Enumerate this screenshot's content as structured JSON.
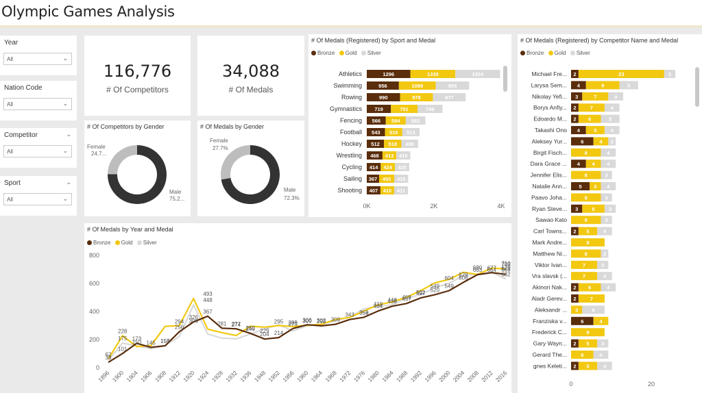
{
  "title": "Olympic Games Analysis",
  "colors": {
    "bronze": "#5a2d0c",
    "gold": "#f2c811",
    "silver": "#d9d9d9",
    "donut_dark": "#333333",
    "donut_light": "#bdbdbd"
  },
  "slicers": [
    {
      "label": "Year",
      "value": "All"
    },
    {
      "label": "Nation Code",
      "value": "All"
    },
    {
      "label": "Competitor",
      "value": "All"
    },
    {
      "label": "Sport",
      "value": "All"
    }
  ],
  "kpis": {
    "competitors": {
      "value": "116,776",
      "label": "# Of Competitors"
    },
    "medals": {
      "value": "34,088",
      "label": "# Of Medals"
    }
  },
  "legend": {
    "bronze": "Bronze",
    "gold": "Gold",
    "silver": "Silver"
  },
  "gender_competitors": {
    "title": "# Of Competitors by Gender",
    "female_label": "Female",
    "female_value": "24.7...",
    "male_label": "Male",
    "male_value": "75.2...",
    "female_pct": 24.7
  },
  "gender_medals": {
    "title": "# Of Medals by Gender",
    "female_label": "Female",
    "female_value": "27.7%",
    "male_label": "Male",
    "male_value": "72.3%",
    "female_pct": 27.7
  },
  "chart_data": [
    {
      "id": "sport",
      "type": "bar",
      "title": "# Of Medals (Registered) by Sport and Medal",
      "categories": [
        "Athletics",
        "Swimming",
        "Rowing",
        "Gymnastics",
        "Fencing",
        "Football",
        "Hockey",
        "Wrestling",
        "Cycling",
        "Sailing",
        "Shooting"
      ],
      "series": [
        {
          "name": "Bronze",
          "values": [
            1296,
            956,
            990,
            719,
            566,
            543,
            512,
            468,
            414,
            367,
            407
          ]
        },
        {
          "name": "Gold",
          "values": [
            1339,
            1099,
            978,
            791,
            594,
            515,
            518,
            413,
            424,
            450,
            410
          ]
        },
        {
          "name": "Silver",
          "values": [
            1334,
            993,
            977,
            746,
            583,
            513,
            498,
            415,
            425,
            415,
            411
          ]
        }
      ],
      "xticks": [
        "0K",
        "2K",
        "4K"
      ],
      "xlim": [
        0,
        4000
      ]
    },
    {
      "id": "competitor",
      "type": "bar",
      "title": "# Of Medals (Registered) by Competitor Name and Medal",
      "categories": [
        "Michael Fre...",
        "Larysa Sem...",
        "Nikolay Yefi...",
        "Borys Anfiy...",
        "Edoardo M...",
        "Takashi Ono",
        "Aleksey Yur...",
        "Birgit Fisch...",
        "Dara Grace ...",
        "Jennifer Elis...",
        "Natalie Ann...",
        "Paavo Joha...",
        "Ryan Steve...",
        "Sawao Kato",
        "Carl Towns...",
        "Mark Andre...",
        "Matthew Ni...",
        "Viktor Ivan...",
        "Vra slavsk (...",
        "Akinori Nak...",
        "Aladr Gerev...",
        "Aleksandr ...",
        "Franziska v...",
        "Frederick C...",
        "Gary Wayn...",
        "Gerard The...",
        "gnes Keleti..."
      ],
      "series": [
        {
          "name": "Bronze",
          "values": [
            2,
            4,
            3,
            2,
            2,
            4,
            6,
            0,
            4,
            0,
            5,
            0,
            3,
            0,
            2,
            0,
            0,
            0,
            0,
            2,
            2,
            0,
            6,
            0,
            2,
            0,
            2
          ]
        },
        {
          "name": "Gold",
          "values": [
            23,
            9,
            7,
            7,
            6,
            5,
            4,
            8,
            4,
            8,
            3,
            8,
            6,
            8,
            5,
            9,
            8,
            7,
            7,
            6,
            7,
            3,
            4,
            9,
            5,
            6,
            5
          ]
        },
        {
          "name": "Silver",
          "values": [
            3,
            5,
            4,
            4,
            5,
            4,
            2,
            4,
            4,
            3,
            4,
            3,
            3,
            3,
            4,
            0,
            2,
            3,
            4,
            4,
            0,
            6,
            0,
            0,
            3,
            4,
            4
          ]
        }
      ],
      "xticks": [
        "0",
        "20"
      ],
      "xlim": [
        0,
        30
      ]
    },
    {
      "id": "year",
      "type": "line",
      "title": "# Of Medals by Year and Medal",
      "x": [
        "1896",
        "1900",
        "1904",
        "1906",
        "1908",
        "1912",
        "1920",
        "1924",
        "1928",
        "1932",
        "1936",
        "1948",
        "1952",
        "1956",
        "1960",
        "1964",
        "1968",
        "1972",
        "1976",
        "1980",
        "1984",
        "1988",
        "1992",
        "1996",
        "2000",
        "2004",
        "2008",
        "2012",
        "2016"
      ],
      "series": [
        {
          "name": "Bronze",
          "values": [
            38,
            101,
            173,
            145,
            156,
            256,
            326,
            367,
            281,
            277,
            245,
            204,
            214,
            279,
            306,
            298,
            309,
            343,
            359,
            404,
            438,
            457,
            497,
            520,
            549,
            608,
            663,
            677,
            665
          ]
        },
        {
          "name": "Gold",
          "values": [
            62,
            228,
            150,
            157,
            294,
            300,
            493,
            274,
            250,
            229,
            295,
            289,
            300,
            293,
            302,
            309,
            343,
            358,
            404,
            448,
            469,
            502,
            549,
            604,
            629,
            680,
            664,
            710,
            703
          ]
        },
        {
          "name": "Silver",
          "values": [
            52,
            175,
            155,
            135,
            157,
            223,
            448,
            240,
            210,
            206,
            239,
            276,
            305,
            262,
            298,
            309,
            336,
            358,
            419,
            438,
            448,
            496,
            520,
            570,
            601,
            656,
            667,
            679,
            632
          ]
        }
      ],
      "data_labels": [
        {
          "i": 0,
          "t": "38"
        },
        {
          "i": 0,
          "t": "62"
        },
        {
          "i": 1,
          "t": "228"
        },
        {
          "i": 1,
          "t": "175"
        },
        {
          "i": 1,
          "t": "101"
        },
        {
          "i": 2,
          "t": "150"
        },
        {
          "i": 2,
          "t": "173"
        },
        {
          "i": 3,
          "t": "145"
        },
        {
          "i": 4,
          "t": "157"
        },
        {
          "i": 4,
          "t": "156"
        },
        {
          "i": 5,
          "t": "294"
        },
        {
          "i": 5,
          "t": "256"
        },
        {
          "i": 6,
          "t": "300"
        },
        {
          "i": 6,
          "t": "326"
        },
        {
          "i": 7,
          "t": "493"
        },
        {
          "i": 7,
          "t": "448"
        },
        {
          "i": 7,
          "t": "367"
        },
        {
          "i": 8,
          "t": "281"
        },
        {
          "i": 9,
          "t": "274"
        },
        {
          "i": 9,
          "t": "277"
        },
        {
          "i": 10,
          "t": "250"
        },
        {
          "i": 10,
          "t": "245"
        },
        {
          "i": 11,
          "t": "229"
        },
        {
          "i": 11,
          "t": "204"
        },
        {
          "i": 12,
          "t": "295"
        },
        {
          "i": 12,
          "t": "214"
        },
        {
          "i": 13,
          "t": "289"
        },
        {
          "i": 13,
          "t": "279"
        },
        {
          "i": 14,
          "t": "300"
        },
        {
          "i": 14,
          "t": "306"
        },
        {
          "i": 15,
          "t": "302"
        },
        {
          "i": 15,
          "t": "298"
        },
        {
          "i": 16,
          "t": "309"
        },
        {
          "i": 17,
          "t": "343"
        },
        {
          "i": 18,
          "t": "358"
        },
        {
          "i": 18,
          "t": "359"
        },
        {
          "i": 19,
          "t": "419"
        },
        {
          "i": 19,
          "t": "404"
        },
        {
          "i": 20,
          "t": "448"
        },
        {
          "i": 20,
          "t": "438"
        },
        {
          "i": 21,
          "t": "469"
        },
        {
          "i": 21,
          "t": "457"
        },
        {
          "i": 22,
          "t": "502"
        },
        {
          "i": 22,
          "t": "497"
        },
        {
          "i": 23,
          "t": "549"
        },
        {
          "i": 23,
          "t": "520"
        },
        {
          "i": 24,
          "t": "604"
        },
        {
          "i": 24,
          "t": "549"
        },
        {
          "i": 25,
          "t": "629"
        },
        {
          "i": 25,
          "t": "608"
        },
        {
          "i": 26,
          "t": "680"
        },
        {
          "i": 26,
          "t": "663"
        },
        {
          "i": 27,
          "t": "664"
        },
        {
          "i": 27,
          "t": "677"
        },
        {
          "i": 28,
          "t": "710"
        },
        {
          "i": 28,
          "t": "667"
        },
        {
          "i": 28,
          "t": "703"
        },
        {
          "i": 28,
          "t": "665"
        },
        {
          "i": 28,
          "t": "679"
        },
        {
          "i": 28,
          "t": "632"
        }
      ],
      "yticks": [
        "0",
        "200",
        "400",
        "600",
        "800"
      ],
      "ylim": [
        0,
        800
      ]
    }
  ]
}
